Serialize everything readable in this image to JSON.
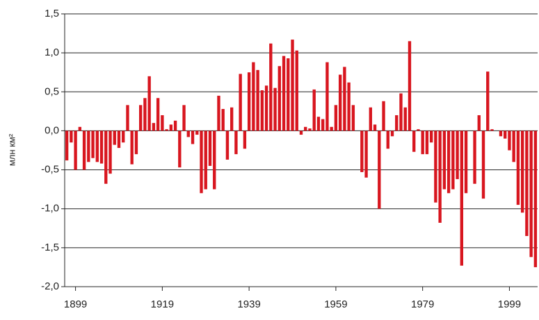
{
  "chart_data": {
    "type": "bar",
    "y_label": "млн км²",
    "color": "#d8161f",
    "x": [
      1897,
      1898,
      1899,
      1900,
      1901,
      1902,
      1903,
      1904,
      1905,
      1906,
      1907,
      1908,
      1909,
      1910,
      1911,
      1912,
      1913,
      1914,
      1915,
      1916,
      1917,
      1918,
      1919,
      1920,
      1921,
      1922,
      1923,
      1924,
      1925,
      1926,
      1927,
      1928,
      1929,
      1930,
      1931,
      1932,
      1933,
      1934,
      1935,
      1936,
      1937,
      1938,
      1939,
      1940,
      1941,
      1942,
      1943,
      1944,
      1945,
      1946,
      1947,
      1948,
      1949,
      1950,
      1951,
      1952,
      1953,
      1954,
      1955,
      1956,
      1957,
      1958,
      1959,
      1960,
      1961,
      1962,
      1963,
      1964,
      1965,
      1966,
      1967,
      1968,
      1969,
      1970,
      1971,
      1972,
      1973,
      1974,
      1975,
      1976,
      1977,
      1978,
      1979,
      1980,
      1981,
      1982,
      1983,
      1984,
      1985,
      1986,
      1987,
      1988,
      1989,
      1990,
      1991,
      1992,
      1993,
      1994,
      1995,
      1996,
      1997,
      1998,
      1999,
      2000,
      2001,
      2002,
      2003,
      2004,
      2005
    ],
    "values": [
      -0.38,
      -0.15,
      -0.5,
      0.05,
      -0.5,
      -0.4,
      -0.35,
      -0.4,
      -0.42,
      -0.68,
      -0.55,
      -0.18,
      -0.22,
      -0.15,
      0.33,
      -0.43,
      -0.3,
      0.33,
      0.42,
      0.7,
      0.1,
      0.42,
      0.2,
      0.02,
      0.08,
      0.13,
      -0.47,
      0.33,
      -0.08,
      -0.17,
      -0.05,
      -0.8,
      -0.75,
      -0.45,
      -0.75,
      0.45,
      0.28,
      -0.37,
      0.3,
      -0.3,
      0.73,
      -0.23,
      0.75,
      0.88,
      0.78,
      0.52,
      0.58,
      1.12,
      0.55,
      0.83,
      0.96,
      0.93,
      1.17,
      1.03,
      -0.05,
      0.05,
      0.03,
      0.53,
      0.18,
      0.15,
      0.88,
      0.05,
      0.33,
      0.72,
      0.82,
      0.62,
      0.33,
      0,
      -0.53,
      -0.6,
      0.3,
      0.08,
      -1.0,
      0.38,
      -0.23,
      -0.07,
      0.2,
      0.48,
      0.3,
      1.15,
      -0.27,
      0.02,
      -0.3,
      -0.3,
      -0.15,
      -0.92,
      -1.18,
      -0.75,
      -0.8,
      -0.75,
      -0.62,
      -1.73,
      -0.8,
      0,
      -0.68,
      0.2,
      -0.87,
      0.76,
      0.02,
      0,
      -0.07,
      -0.1,
      -0.25,
      -0.4,
      -0.95,
      -1.05,
      -1.35,
      -1.62,
      -1.75
    ],
    "xlim": [
      1896.5,
      2005.5
    ],
    "xticks": [
      1899,
      1919,
      1939,
      1959,
      1979,
      1999
    ],
    "ylim": [
      -2.0,
      1.5
    ],
    "yticks": [
      {
        "value": -2.0,
        "label": "-2,0"
      },
      {
        "value": -1.5,
        "label": "-1,5"
      },
      {
        "value": -1.0,
        "label": "-1,0"
      },
      {
        "value": -0.5,
        "label": "-0,5"
      },
      {
        "value": 0.0,
        "label": "0,0"
      },
      {
        "value": 0.5,
        "label": "0,5"
      },
      {
        "value": 1.0,
        "label": "1,0"
      },
      {
        "value": 1.5,
        "label": "1,5"
      }
    ],
    "grid": true
  }
}
